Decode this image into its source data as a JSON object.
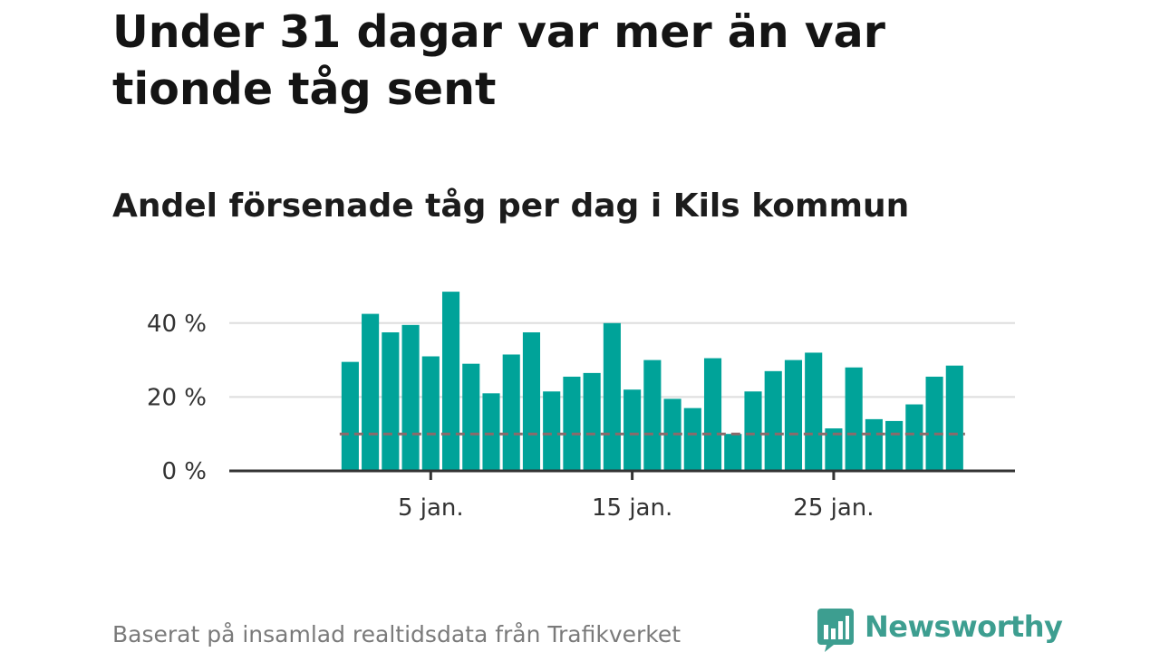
{
  "header": {
    "title": "Under 31 dagar var mer än var tionde tåg sent",
    "subtitle": "Andel försenade tåg per dag i Kils kommun"
  },
  "footer": {
    "source": "Baserat på insamlad realtidsdata från Trafikverket",
    "brand": "Newsworthy"
  },
  "colors": {
    "bar": "#00a399",
    "reference_line": "#8c6a6a",
    "grid": "#dddddd",
    "axis": "#333333",
    "brand": "#3d9e90"
  },
  "chart_data": {
    "type": "bar",
    "x": [
      1,
      2,
      3,
      4,
      5,
      6,
      7,
      8,
      9,
      10,
      11,
      12,
      13,
      14,
      15,
      16,
      17,
      18,
      19,
      20,
      21,
      22,
      23,
      24,
      25,
      26,
      27,
      28,
      29,
      30,
      31
    ],
    "values": [
      29.5,
      42.5,
      37.5,
      39.5,
      31,
      48.5,
      29,
      21,
      31.5,
      37.5,
      21.5,
      25.5,
      26.5,
      40,
      22,
      30,
      19.5,
      17,
      30.5,
      10,
      21.5,
      27,
      30,
      32,
      11.5,
      28,
      14,
      13.5,
      18,
      25.5,
      28.5
    ],
    "xticks": [
      {
        "day": 5,
        "label": "5 jan."
      },
      {
        "day": 15,
        "label": "15 jan."
      },
      {
        "day": 25,
        "label": "25 jan."
      }
    ],
    "yticks": [
      {
        "value": 0,
        "label": "0 %"
      },
      {
        "value": 20,
        "label": "20 %"
      },
      {
        "value": 40,
        "label": "40 %"
      }
    ],
    "ylim": [
      0,
      50
    ],
    "xlim": [
      -5,
      34
    ],
    "reference_value": 10,
    "grid": true
  }
}
